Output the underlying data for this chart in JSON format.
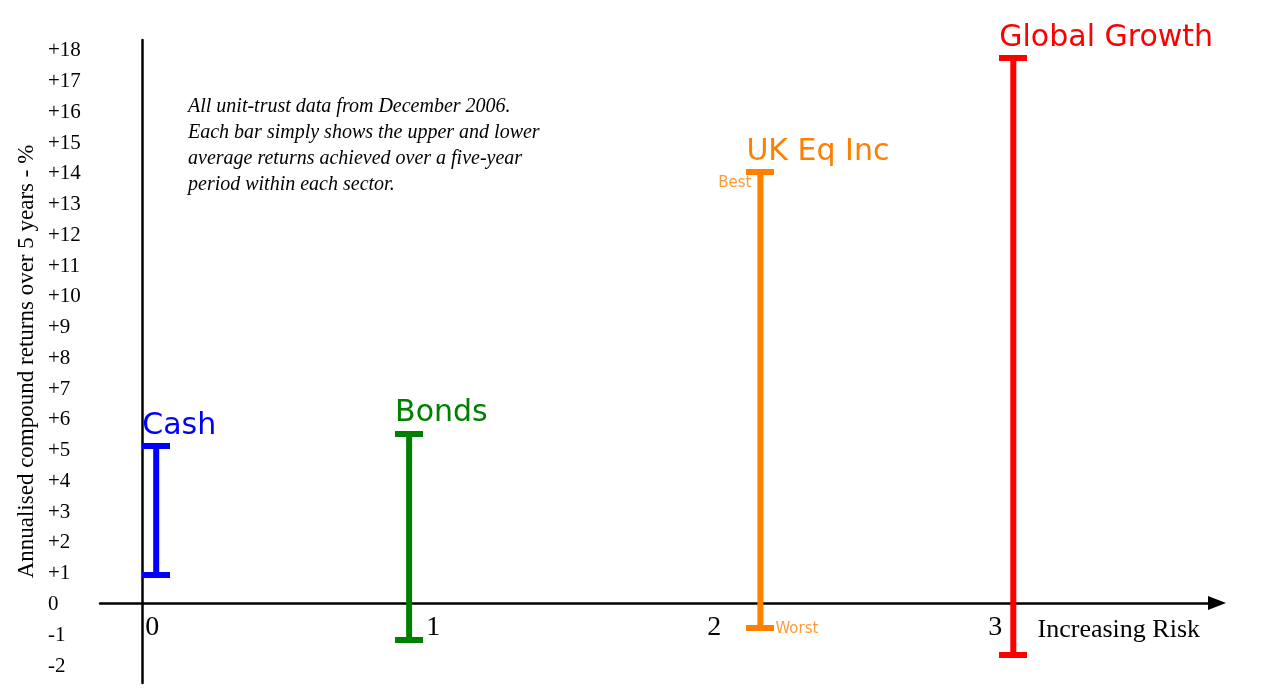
{
  "chart_data": {
    "type": "bar",
    "ylabel": "Annualised compound returns over 5 years - %",
    "xlabel": "Increasing Risk",
    "annotations": [
      "All unit-trust data from December 2006.\nEach bar simply shows the upper and lower\naverage returns achieved over a five-year\nperiod within each sector.",
      {
        "text": "Best",
        "x": 2.2,
        "y": 14.0
      },
      {
        "text": "Worst",
        "x": 2.2,
        "y": -0.8
      }
    ],
    "series": [
      {
        "name": "Cash",
        "color": "#0000ff",
        "x": [
          0.05
        ],
        "base": [
          0.9
        ],
        "values": [
          4.2
        ]
      },
      {
        "name": "Bonds",
        "color": "#008000",
        "x": [
          0.95
        ],
        "base": [
          -1.2
        ],
        "values": [
          6.7
        ]
      },
      {
        "name": "UK Eq Inc",
        "color": "#ff8000",
        "x": [
          2.2
        ],
        "base": [
          -0.8
        ],
        "values": [
          14.8
        ]
      },
      {
        "name": "Global Growth",
        "color": "#ff0000",
        "x": [
          3.1
        ],
        "base": [
          -1.7
        ],
        "values": [
          19.4
        ]
      }
    ],
    "xlim": [
      -0.15,
      3.8
    ],
    "xticks": [
      0,
      1,
      2,
      3
    ],
    "ylim": [
      -2.6,
      18.3
    ],
    "yticks": [
      {
        "value": -2,
        "label": "-2"
      },
      {
        "value": -1,
        "label": "-1"
      },
      0,
      {
        "value": 1,
        "label": "+1"
      },
      {
        "value": 2,
        "label": "+2"
      },
      {
        "value": 3,
        "label": "+3"
      },
      {
        "value": 4,
        "label": "+4"
      },
      {
        "value": 5,
        "label": "+5"
      },
      {
        "value": 6,
        "label": "+6"
      },
      {
        "value": 7,
        "label": "+7"
      },
      {
        "value": 8,
        "label": "+8"
      },
      {
        "value": 9,
        "label": "+9"
      },
      {
        "value": 10,
        "label": "+10"
      },
      {
        "value": 11,
        "label": "+11"
      },
      {
        "value": 12,
        "label": "+12"
      },
      {
        "value": 13,
        "label": "+13"
      },
      {
        "value": 14,
        "label": "+14"
      },
      {
        "value": 15,
        "label": "+15"
      },
      {
        "value": 16,
        "label": "+16"
      },
      {
        "value": 17,
        "label": "+17"
      },
      {
        "value": 18,
        "label": "+18"
      }
    ]
  }
}
